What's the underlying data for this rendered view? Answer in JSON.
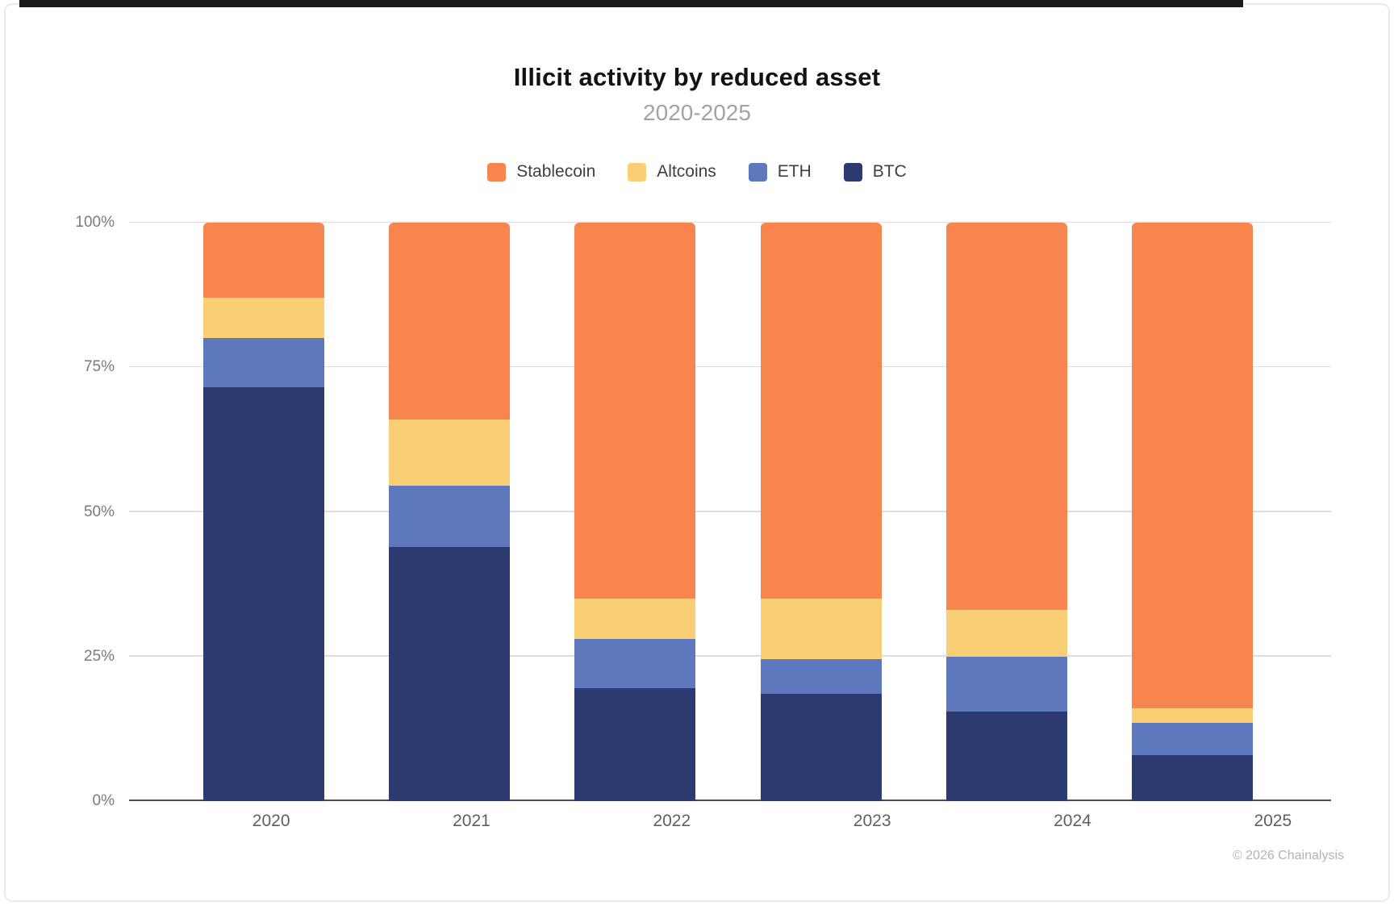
{
  "page": {
    "title": "Illicit activity by reduced asset",
    "subtitle": "2020-2025",
    "footer": "© 2026 Chainalysis"
  },
  "legend": [
    {
      "label": "Stablecoin",
      "color": "#F8854E"
    },
    {
      "label": "Altcoins",
      "color": "#F9CE75"
    },
    {
      "label": "ETH",
      "color": "#5E78BE"
    },
    {
      "label": "BTC",
      "color": "#2B3B72"
    }
  ],
  "chart_data": {
    "type": "bar",
    "stacked": true,
    "unit": "percent",
    "title": "Illicit activity by reduced asset",
    "subtitle": "2020-2025",
    "xlabel": "",
    "ylabel": "",
    "ylim": [
      0,
      100
    ],
    "yticks": [
      {
        "value": 0,
        "label": "0%"
      },
      {
        "value": 25,
        "label": "25%"
      },
      {
        "value": 50,
        "label": "50%"
      },
      {
        "value": 75,
        "label": "75%"
      },
      {
        "value": 100,
        "label": "100%"
      }
    ],
    "grid": true,
    "legend_position": "top",
    "categories": [
      "2020",
      "2021",
      "2022",
      "2023",
      "2024",
      "2025"
    ],
    "series": [
      {
        "name": "Stablecoin",
        "color": "#F8854E",
        "values": [
          13,
          34,
          65,
          65,
          67,
          84
        ]
      },
      {
        "name": "Altcoins",
        "color": "#F9CE75",
        "values": [
          7,
          11.5,
          7,
          10.5,
          8,
          2.5
        ]
      },
      {
        "name": "ETH",
        "color": "#5E78BE",
        "values": [
          8.5,
          10.5,
          8.5,
          6,
          9.5,
          5.5
        ]
      },
      {
        "name": "BTC",
        "color": "#2B3B72",
        "values": [
          71.5,
          44,
          19.5,
          18.5,
          15.5,
          8
        ]
      }
    ]
  }
}
